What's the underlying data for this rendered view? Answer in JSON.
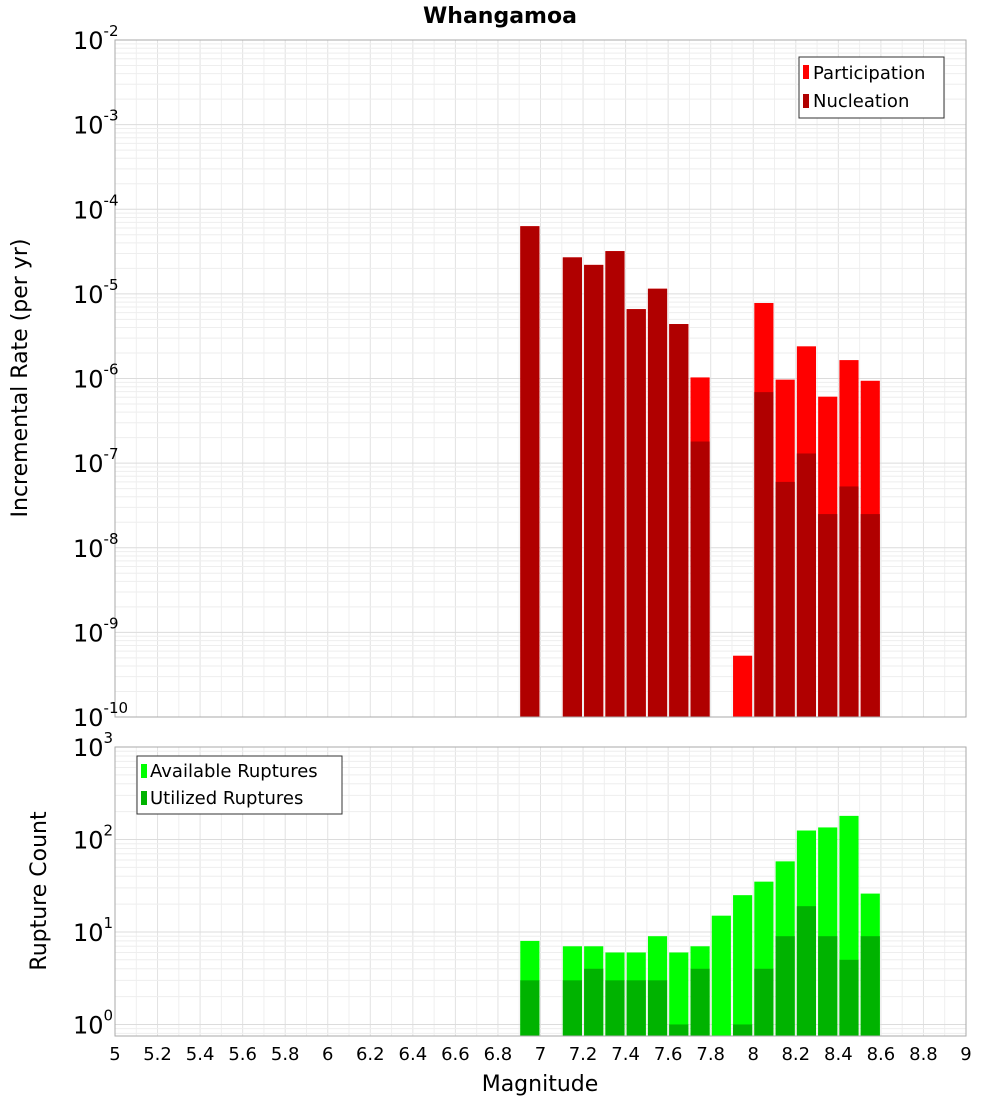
{
  "chart_data": [
    {
      "type": "bar",
      "title": "Whangamoa",
      "xlabel": "Magnitude",
      "ylabel": "Incremental Rate (per yr)",
      "xlim": [
        5,
        9
      ],
      "ylim": [
        1e-10,
        0.01
      ],
      "y_scale": "log",
      "grid": true,
      "legend_position": "top-right",
      "y_ticks": [
        {
          "base": "10",
          "exp": "-10"
        },
        {
          "base": "10",
          "exp": "-9"
        },
        {
          "base": "10",
          "exp": "-8"
        },
        {
          "base": "10",
          "exp": "-7"
        },
        {
          "base": "10",
          "exp": "-6"
        },
        {
          "base": "10",
          "exp": "-5"
        },
        {
          "base": "10",
          "exp": "-4"
        },
        {
          "base": "10",
          "exp": "-3"
        },
        {
          "base": "10",
          "exp": "-2"
        }
      ],
      "categories": [
        6.95,
        7.15,
        7.25,
        7.35,
        7.45,
        7.55,
        7.65,
        7.75,
        7.95,
        8.05,
        8.15,
        8.25,
        8.35,
        8.45,
        8.55
      ],
      "series": [
        {
          "name": "Participation",
          "color": "#ff0000",
          "values": [
            6.3e-05,
            2.7e-05,
            2.2e-05,
            3.2e-05,
            6.6e-06,
            1.15e-05,
            4.4e-06,
            1.03e-06,
            5.3e-10,
            7.8e-06,
            9.7e-07,
            2.4e-06,
            6.1e-07,
            1.65e-06,
            9.4e-07
          ]
        },
        {
          "name": "Nucleation",
          "color": "#b00000",
          "values": [
            6.3e-05,
            2.7e-05,
            2.2e-05,
            3.2e-05,
            6.6e-06,
            1.15e-05,
            4.4e-06,
            1.8e-07,
            null,
            6.9e-07,
            6e-08,
            1.3e-07,
            2.5e-08,
            5.3e-08,
            2.5e-08
          ]
        }
      ]
    },
    {
      "type": "bar",
      "xlabel": "Magnitude",
      "ylabel": "Rupture Count",
      "xlim": [
        5,
        9
      ],
      "ylim": [
        0.75,
        1000
      ],
      "y_scale": "log",
      "grid": true,
      "legend_position": "top-left",
      "x_ticks": [
        "5",
        "5.2",
        "5.4",
        "5.6",
        "5.8",
        "6",
        "6.2",
        "6.4",
        "6.6",
        "6.8",
        "7",
        "7.2",
        "7.4",
        "7.6",
        "7.8",
        "8",
        "8.2",
        "8.4",
        "8.6",
        "8.8",
        "9"
      ],
      "y_ticks": [
        {
          "base": "10",
          "exp": "0"
        },
        {
          "base": "10",
          "exp": "1"
        },
        {
          "base": "10",
          "exp": "2"
        },
        {
          "base": "10",
          "exp": "3"
        }
      ],
      "categories": [
        6.95,
        7.15,
        7.25,
        7.35,
        7.45,
        7.55,
        7.65,
        7.75,
        7.85,
        7.95,
        8.05,
        8.15,
        8.25,
        8.35,
        8.45,
        8.55
      ],
      "series": [
        {
          "name": "Available Ruptures",
          "color": "#00ff00",
          "values": [
            8,
            7,
            7,
            6,
            6,
            9,
            6,
            7,
            15,
            25,
            35,
            58,
            125,
            135,
            180,
            26
          ]
        },
        {
          "name": "Utilized Ruptures",
          "color": "#00b300",
          "values": [
            3,
            3,
            4,
            3,
            3,
            3,
            1,
            4,
            null,
            1,
            4,
            9,
            19,
            9,
            5,
            9
          ]
        }
      ]
    }
  ]
}
